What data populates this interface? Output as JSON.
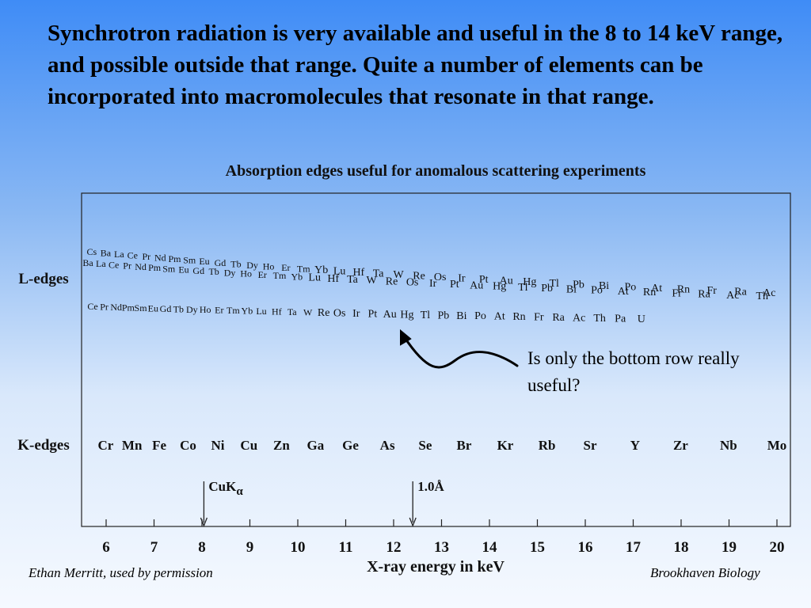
{
  "slide": {
    "heading": "Synchrotron radiation is very available and useful in the 8 to 14 keV range, and possible outside that range.  Quite a number of elements can be incorporated into macromolecules that resonate in that range.",
    "annotation": "Is only the bottom row really useful?",
    "footer_left": "Ethan Merritt, used by permission",
    "footer_right": "Brookhaven Biology"
  },
  "chart_data": {
    "type": "scatter",
    "title": "Absorption edges useful for anomalous scattering experiments",
    "xlabel": "X-ray energy in keV",
    "xlim": [
      5.5,
      20.3
    ],
    "x_ticks": [
      6,
      7,
      8,
      9,
      10,
      11,
      12,
      13,
      14,
      15,
      16,
      17,
      18,
      19,
      20
    ],
    "rows": {
      "l_edges": "L-edges",
      "k_edges": "K-edges"
    },
    "grid": false,
    "series": [
      {
        "row": "L-edges",
        "tier": 1,
        "points": [
          {
            "label": "Cs",
            "x": 5.7
          },
          {
            "label": "Ba",
            "x": 5.99
          },
          {
            "label": "La",
            "x": 6.27
          },
          {
            "label": "Ce",
            "x": 6.55
          },
          {
            "label": "Pr",
            "x": 6.84
          },
          {
            "label": "Nd",
            "x": 7.13
          },
          {
            "label": "Pm",
            "x": 7.43
          },
          {
            "label": "Sm",
            "x": 7.74
          },
          {
            "label": "Eu",
            "x": 8.05
          },
          {
            "label": "Gd",
            "x": 8.38
          },
          {
            "label": "Tb",
            "x": 8.71
          },
          {
            "label": "Dy",
            "x": 9.05
          },
          {
            "label": "Ho",
            "x": 9.39
          },
          {
            "label": "Er",
            "x": 9.75
          },
          {
            "label": "Tm",
            "x": 10.12
          },
          {
            "label": "Yb",
            "x": 10.49
          },
          {
            "label": "Lu",
            "x": 10.87
          },
          {
            "label": "Hf",
            "x": 11.27
          },
          {
            "label": "Ta",
            "x": 11.68
          },
          {
            "label": "W",
            "x": 12.1
          },
          {
            "label": "Re",
            "x": 12.53
          },
          {
            "label": "Os",
            "x": 12.97
          },
          {
            "label": "Ir",
            "x": 13.42
          },
          {
            "label": "Pt",
            "x": 13.88
          },
          {
            "label": "Au",
            "x": 14.35
          },
          {
            "label": "Hg",
            "x": 14.84
          },
          {
            "label": "Tl",
            "x": 15.35
          },
          {
            "label": "Pb",
            "x": 15.86
          },
          {
            "label": "Bi",
            "x": 16.39
          },
          {
            "label": "Po",
            "x": 16.94
          },
          {
            "label": "At",
            "x": 17.49
          },
          {
            "label": "Rn",
            "x": 18.05
          },
          {
            "label": "Fr",
            "x": 18.64
          },
          {
            "label": "Ra",
            "x": 19.24
          },
          {
            "label": "Ac",
            "x": 19.84
          }
        ]
      },
      {
        "row": "L-edges",
        "tier": 2,
        "points": [
          {
            "label": "Ba",
            "x": 5.62
          },
          {
            "label": "La",
            "x": 5.89
          },
          {
            "label": "Ce",
            "x": 6.16
          },
          {
            "label": "Pr",
            "x": 6.44
          },
          {
            "label": "Nd",
            "x": 6.72
          },
          {
            "label": "Pm",
            "x": 7.01
          },
          {
            "label": "Sm",
            "x": 7.31
          },
          {
            "label": "Eu",
            "x": 7.62
          },
          {
            "label": "Gd",
            "x": 7.93
          },
          {
            "label": "Tb",
            "x": 8.25
          },
          {
            "label": "Dy",
            "x": 8.58
          },
          {
            "label": "Ho",
            "x": 8.92
          },
          {
            "label": "Er",
            "x": 9.26
          },
          {
            "label": "Tm",
            "x": 9.62
          },
          {
            "label": "Yb",
            "x": 9.98
          },
          {
            "label": "Lu",
            "x": 10.35
          },
          {
            "label": "Hf",
            "x": 10.74
          },
          {
            "label": "Ta",
            "x": 11.14
          },
          {
            "label": "W",
            "x": 11.54
          },
          {
            "label": "Re",
            "x": 11.96
          },
          {
            "label": "Os",
            "x": 12.39
          },
          {
            "label": "Ir",
            "x": 12.82
          },
          {
            "label": "Pt",
            "x": 13.27
          },
          {
            "label": "Au",
            "x": 13.73
          },
          {
            "label": "Hg",
            "x": 14.21
          },
          {
            "label": "Tl",
            "x": 14.7
          },
          {
            "label": "Pb",
            "x": 15.2
          },
          {
            "label": "Bi",
            "x": 15.71
          },
          {
            "label": "Po",
            "x": 16.24
          },
          {
            "label": "At",
            "x": 16.79
          },
          {
            "label": "Rn",
            "x": 17.34
          },
          {
            "label": "Fr",
            "x": 17.91
          },
          {
            "label": "Ra",
            "x": 18.48
          },
          {
            "label": "Ac",
            "x": 19.08
          },
          {
            "label": "Th",
            "x": 19.69
          }
        ]
      },
      {
        "row": "L-edges",
        "tier": 3,
        "points": [
          {
            "label": "Ce",
            "x": 5.72
          },
          {
            "label": "Pr",
            "x": 5.96
          },
          {
            "label": "Nd",
            "x": 6.21
          },
          {
            "label": "Pm",
            "x": 6.46
          },
          {
            "label": "Sm",
            "x": 6.72
          },
          {
            "label": "Eu",
            "x": 6.98
          },
          {
            "label": "Gd",
            "x": 7.24
          },
          {
            "label": "Tb",
            "x": 7.51
          },
          {
            "label": "Dy",
            "x": 7.79
          },
          {
            "label": "Ho",
            "x": 8.07
          },
          {
            "label": "Er",
            "x": 8.36
          },
          {
            "label": "Tm",
            "x": 8.65
          },
          {
            "label": "Yb",
            "x": 8.94
          },
          {
            "label": "Lu",
            "x": 9.24
          },
          {
            "label": "Hf",
            "x": 9.56
          },
          {
            "label": "Ta",
            "x": 9.88
          },
          {
            "label": "W",
            "x": 10.21
          },
          {
            "label": "Re",
            "x": 10.54
          },
          {
            "label": "Os",
            "x": 10.87
          },
          {
            "label": "Ir",
            "x": 11.22
          },
          {
            "label": "Pt",
            "x": 11.56
          },
          {
            "label": "Au",
            "x": 11.92
          },
          {
            "label": "Hg",
            "x": 12.28
          },
          {
            "label": "Tl",
            "x": 12.66
          },
          {
            "label": "Pb",
            "x": 13.04
          },
          {
            "label": "Bi",
            "x": 13.42
          },
          {
            "label": "Po",
            "x": 13.81
          },
          {
            "label": "At",
            "x": 14.21
          },
          {
            "label": "Rn",
            "x": 14.62
          },
          {
            "label": "Fr",
            "x": 15.03
          },
          {
            "label": "Ra",
            "x": 15.44
          },
          {
            "label": "Ac",
            "x": 15.87
          },
          {
            "label": "Th",
            "x": 16.3
          },
          {
            "label": "Pa",
            "x": 16.73
          },
          {
            "label": "U",
            "x": 17.17
          }
        ]
      },
      {
        "row": "K-edges",
        "tier": 1,
        "points": [
          {
            "label": "Cr",
            "x": 5.99
          },
          {
            "label": "Mn",
            "x": 6.54
          },
          {
            "label": "Fe",
            "x": 7.11
          },
          {
            "label": "Co",
            "x": 7.71
          },
          {
            "label": "Ni",
            "x": 8.33
          },
          {
            "label": "Cu",
            "x": 8.98
          },
          {
            "label": "Zn",
            "x": 9.66
          },
          {
            "label": "Ga",
            "x": 10.37
          },
          {
            "label": "Ge",
            "x": 11.1
          },
          {
            "label": "As",
            "x": 11.87
          },
          {
            "label": "Se",
            "x": 12.66
          },
          {
            "label": "Br",
            "x": 13.47
          },
          {
            "label": "Kr",
            "x": 14.33
          },
          {
            "label": "Rb",
            "x": 15.2
          },
          {
            "label": "Sr",
            "x": 16.1
          },
          {
            "label": "Y",
            "x": 17.04
          },
          {
            "label": "Zr",
            "x": 17.99
          },
          {
            "label": "Nb",
            "x": 18.99
          },
          {
            "label": "Mo",
            "x": 20.0
          }
        ]
      }
    ],
    "markers": [
      {
        "label": "CuK",
        "subscript": "α",
        "x": 8.04
      },
      {
        "label": "1.0Å",
        "x": 12.4
      }
    ]
  }
}
